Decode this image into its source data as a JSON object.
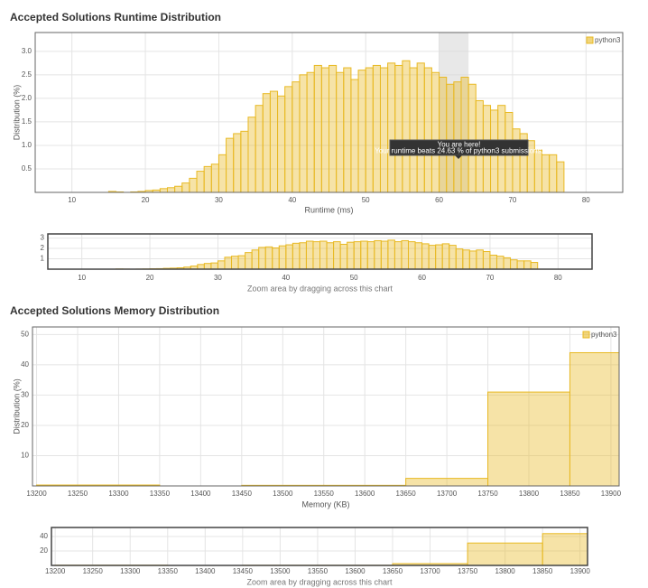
{
  "chart_data": [
    {
      "type": "histogram",
      "title": "Accepted Solutions Runtime Distribution",
      "x_label": "Runtime (ms)",
      "y_label": "Distribution (%)",
      "bins": [
        15,
        16,
        17,
        18,
        19,
        20,
        21,
        22,
        23,
        24,
        25,
        26,
        27,
        28,
        29,
        30,
        31,
        32,
        33,
        34,
        35,
        36,
        37,
        38,
        39,
        40,
        41,
        42,
        43,
        44,
        45,
        46,
        47,
        48,
        49,
        50,
        51,
        52,
        53,
        54,
        55,
        56,
        57,
        58,
        59,
        60,
        61,
        62,
        63,
        64,
        65,
        66,
        67,
        68,
        69,
        70,
        71,
        72,
        73,
        74,
        75,
        76,
        77
      ],
      "series": [
        {
          "name": "python3",
          "color": "#e8b923",
          "values": [
            0.02,
            0.01,
            0,
            0.01,
            0.02,
            0.04,
            0.05,
            0.08,
            0.1,
            0.13,
            0.2,
            0.3,
            0.45,
            0.55,
            0.6,
            0.8,
            1.15,
            1.25,
            1.3,
            1.6,
            1.85,
            2.1,
            2.15,
            2.05,
            2.25,
            2.35,
            2.5,
            2.55,
            2.7,
            2.65,
            2.7,
            2.55,
            2.65,
            2.4,
            2.6,
            2.65,
            2.7,
            2.65,
            2.75,
            2.7,
            2.8,
            2.65,
            2.75,
            2.65,
            2.55,
            2.45,
            2.3,
            2.35,
            2.45,
            2.3,
            1.95,
            1.85,
            1.75,
            1.85,
            1.7,
            1.35,
            1.25,
            1.1,
            0.9,
            0.8,
            0.8,
            0.65
          ]
        }
      ],
      "xlim": [
        5,
        85
      ],
      "ylim": [
        0,
        3.4
      ],
      "xticks": [
        10,
        20,
        30,
        40,
        50,
        60,
        70,
        80
      ],
      "yticks": [
        0.5,
        {
          "value": 1,
          "label": "1.0"
        },
        1.5,
        {
          "value": 2,
          "label": "2.0"
        },
        2.5,
        {
          "value": 3,
          "label": "3.0"
        }
      ],
      "grid": true,
      "legend": "top-right",
      "highlight": [
        60,
        64
      ],
      "annotation": [
        "You are here!",
        "Your runtime beats 24.63 % of python3 submissions."
      ],
      "nav_xticks": [
        10,
        20,
        30,
        40,
        50,
        60,
        70,
        80
      ],
      "nav_yticks": [
        1,
        2,
        3
      ],
      "nav_caption": "Zoom area by dragging across this chart"
    },
    {
      "type": "histogram",
      "title": "Accepted Solutions Memory Distribution",
      "x_label": "Memory (KB)",
      "y_label": "Distribution (%)",
      "bins": [
        13200,
        13350,
        13450,
        13550,
        13650,
        13750,
        13850,
        13910
      ],
      "series": [
        {
          "name": "python3",
          "color": "#e8b923",
          "values": [
            0.3,
            0,
            0.2,
            0.2,
            2.5,
            31,
            44
          ]
        }
      ],
      "xlim": [
        13195,
        13910
      ],
      "ylim": [
        0,
        52.5
      ],
      "xticks": [
        13200,
        13250,
        13300,
        13350,
        13400,
        13450,
        13500,
        13550,
        13600,
        13650,
        13700,
        13750,
        13800,
        13850,
        13900
      ],
      "yticks": [
        10,
        20,
        30,
        40,
        50
      ],
      "grid": true,
      "legend": "top-right",
      "nav_xticks": [
        13200,
        13250,
        13300,
        13350,
        13400,
        13450,
        13500,
        13550,
        13600,
        13650,
        13700,
        13750,
        13800,
        13850,
        13900
      ],
      "nav_yticks": [
        20,
        40
      ],
      "nav_caption": "Zoom area by dragging across this chart"
    }
  ]
}
